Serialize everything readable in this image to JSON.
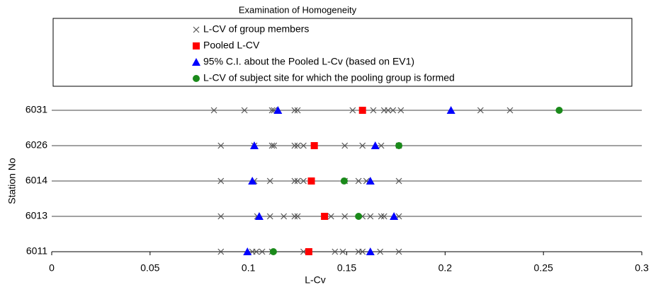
{
  "chart_data": {
    "type": "scatter",
    "title": "Examination of Homogeneity",
    "x_label": "L-Cv",
    "y_label": "Station No",
    "categories": [
      "6031",
      "6026",
      "6014",
      "6013",
      "6011"
    ],
    "xlim": [
      0,
      0.3
    ],
    "xticks": [
      0,
      0.05,
      0.1,
      0.15,
      0.2,
      0.25,
      0.3
    ],
    "series": [
      {
        "name": "L-CV of group members",
        "color": "#555555",
        "marker": "cross",
        "x": [
          0.0825,
          0.098,
          0.112,
          0.113,
          0.1235,
          0.125,
          0.153,
          0.1635,
          0.169,
          0.171,
          0.1735,
          0.1775,
          0.218,
          0.233,
          0.086,
          0.103,
          0.112,
          0.113,
          0.1235,
          0.125,
          0.128,
          0.149,
          0.158,
          0.1675,
          0.1765,
          0.086,
          0.103,
          0.111,
          0.1235,
          0.125,
          0.128,
          0.149,
          0.156,
          0.16,
          0.1765,
          0.086,
          0.1045,
          0.111,
          0.118,
          0.1235,
          0.125,
          0.142,
          0.149,
          0.158,
          0.162,
          0.1675,
          0.169,
          0.1765,
          0.086,
          0.102,
          0.104,
          0.107,
          0.112,
          0.128,
          0.144,
          0.148,
          0.156,
          0.158,
          0.167,
          0.1765
        ],
        "y": [
          "6031",
          "6031",
          "6031",
          "6031",
          "6031",
          "6031",
          "6031",
          "6031",
          "6031",
          "6031",
          "6031",
          "6031",
          "6031",
          "6031",
          "6026",
          "6026",
          "6026",
          "6026",
          "6026",
          "6026",
          "6026",
          "6026",
          "6026",
          "6026",
          "6026",
          "6014",
          "6014",
          "6014",
          "6014",
          "6014",
          "6014",
          "6014",
          "6014",
          "6014",
          "6014",
          "6013",
          "6013",
          "6013",
          "6013",
          "6013",
          "6013",
          "6013",
          "6013",
          "6013",
          "6013",
          "6013",
          "6013",
          "6013",
          "6011",
          "6011",
          "6011",
          "6011",
          "6011",
          "6011",
          "6011",
          "6011",
          "6011",
          "6011",
          "6011",
          "6011"
        ]
      },
      {
        "name": "Pooled L-CV",
        "color": "#ff0000",
        "marker": "square",
        "x": [
          0.158,
          0.1335,
          0.132,
          0.1387,
          0.1307
        ],
        "y": [
          "6031",
          "6026",
          "6014",
          "6013",
          "6011"
        ]
      },
      {
        "name": "95% C.I. about the Pooled  L-Cv (based on EV1)",
        "color": "#0000ff",
        "marker": "triangle",
        "x": [
          0.115,
          0.203,
          0.103,
          0.1645,
          0.102,
          0.162,
          0.1055,
          0.174,
          0.0995,
          0.162
        ],
        "y": [
          "6031",
          "6031",
          "6026",
          "6026",
          "6014",
          "6014",
          "6013",
          "6013",
          "6011",
          "6011"
        ]
      },
      {
        "name": "L-CV of subject site  for which the pooling group is formed",
        "color": "#1a8a1a",
        "marker": "circle",
        "x": [
          0.258,
          0.1765,
          0.1487,
          0.156,
          0.1127
        ],
        "y": [
          "6031",
          "6026",
          "6014",
          "6013",
          "6011"
        ]
      }
    ]
  }
}
